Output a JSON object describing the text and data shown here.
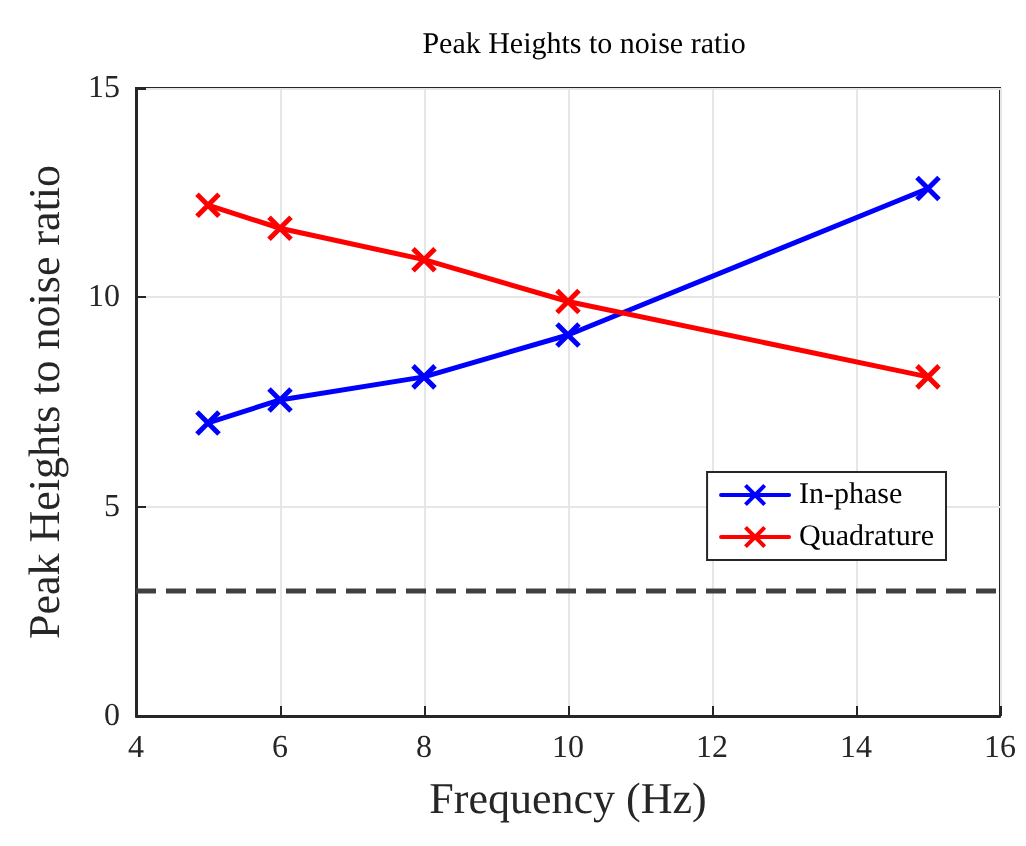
{
  "chart_data": {
    "type": "line",
    "title": "Peak Heights to noise ratio",
    "xlabel": "Frequency (Hz)",
    "ylabel": "Peak Heights to noise ratio",
    "x": [
      5,
      6,
      8,
      10,
      15
    ],
    "series": [
      {
        "name": "In-phase",
        "color": "#0000ff",
        "values": [
          7.0,
          7.55,
          8.1,
          9.1,
          12.6
        ]
      },
      {
        "name": "Quadrature",
        "color": "#ff0000",
        "values": [
          12.2,
          11.65,
          10.9,
          9.9,
          8.1
        ]
      }
    ],
    "xlim": [
      4,
      16
    ],
    "xticks": [
      4,
      6,
      8,
      10,
      12,
      14,
      16
    ],
    "ylim": [
      0,
      15
    ],
    "yticks": [
      0,
      5,
      10,
      15
    ],
    "ref_lines": [
      {
        "axis": "y",
        "value": 3,
        "color": "#404040",
        "line_style": "dashed"
      }
    ],
    "grid": true,
    "legend": "right",
    "marker": "cross",
    "line_style": "solid"
  }
}
